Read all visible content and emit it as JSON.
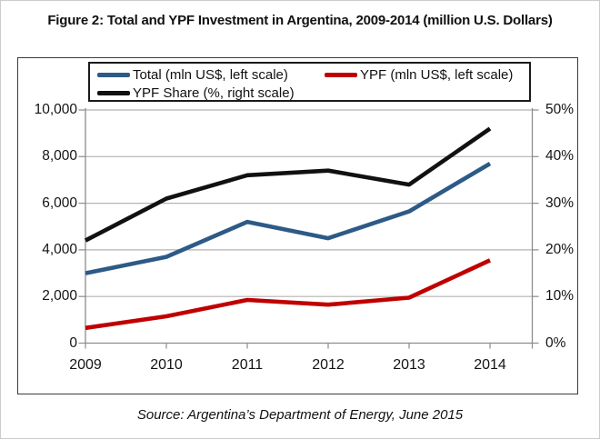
{
  "title": "Figure 2: Total and YPF Investment in Argentina, 2009-2014 (million U.S. Dollars)",
  "source": "Source: Argentina’s Department of Energy, June 2015",
  "chart_data": {
    "type": "line",
    "categories": [
      "2009",
      "2010",
      "2011",
      "2012",
      "2013",
      "2014"
    ],
    "series": [
      {
        "id": "total",
        "name": "Total (mln US$, left scale)",
        "axis": "left",
        "color": "#2d5a87",
        "values": [
          3000,
          3700,
          5200,
          4500,
          5650,
          7700
        ]
      },
      {
        "id": "ypf",
        "name": "YPF (mln US$, left scale)",
        "axis": "left",
        "color": "#c00000",
        "values": [
          650,
          1150,
          1850,
          1650,
          1950,
          3550
        ]
      },
      {
        "id": "ypf-share",
        "name": "YPF Share (%, right scale)",
        "axis": "right",
        "color": "#111111",
        "values": [
          22,
          31,
          36,
          37,
          34,
          46
        ]
      }
    ],
    "left_axis": {
      "label": "",
      "min": 0,
      "max": 10000,
      "tick_labels": [
        "0",
        "2,000",
        "4,000",
        "6,000",
        "8,000",
        "10,000"
      ]
    },
    "right_axis": {
      "label": "",
      "min": 0,
      "max": 50,
      "tick_labels": [
        "0%",
        "10%",
        "20%",
        "30%",
        "40%",
        "50%"
      ]
    },
    "grid": true,
    "legend_position": "top",
    "colors": {
      "gridline": "#b3b3b3",
      "axis": "#8c8c8c",
      "frame_border": "#3a3a3a"
    }
  }
}
